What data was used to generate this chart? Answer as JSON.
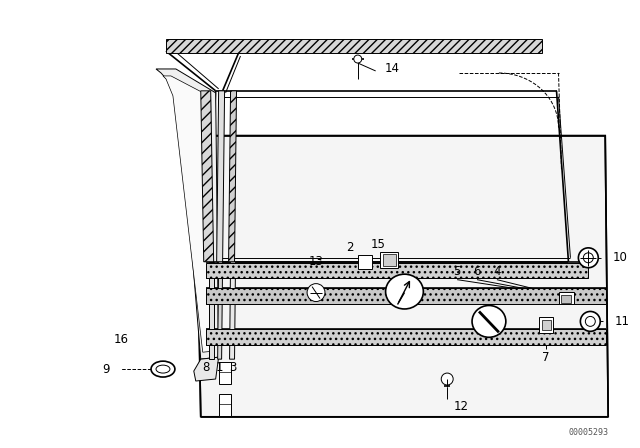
{
  "bg_color": "#ffffff",
  "line_color": "#000000",
  "fig_width": 6.4,
  "fig_height": 4.48,
  "dpi": 100,
  "watermark": "00005293"
}
